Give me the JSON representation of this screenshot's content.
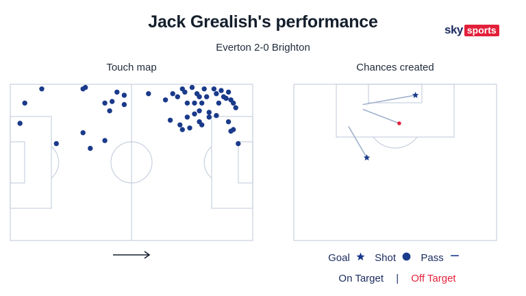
{
  "title": "Jack Grealish's performance",
  "subtitle": "Everton 2-0 Brighton",
  "logo": {
    "sky": "sky",
    "sports": "sports"
  },
  "panels": {
    "touch_map": "Touch map",
    "chances_created": "Chances created"
  },
  "legend": {
    "goal": "Goal",
    "shot": "Shot",
    "pass": "Pass",
    "on_target": "On Target",
    "separator": "|",
    "off_target": "Off Target"
  },
  "icons": {
    "goal": "star-icon",
    "shot": "circle-icon",
    "pass": "dash-icon",
    "direction": "arrow-right-icon"
  },
  "colors": {
    "marker": "#1a3a8a",
    "pitch_lines": "#c7d0de",
    "off_target": "#e3203a",
    "pass_line": "#9fb1cc"
  },
  "chart_data": [
    {
      "type": "scatter",
      "name": "Touch map",
      "note_units": "pitch coordinates, x: 0-100 along attacking direction, y: 0-100 from top touchline",
      "points": [
        {
          "x": 13,
          "y": 3
        },
        {
          "x": 6,
          "y": 12
        },
        {
          "x": 31,
          "y": 2
        },
        {
          "x": 30,
          "y": 3
        },
        {
          "x": 44,
          "y": 5
        },
        {
          "x": 47,
          "y": 7
        },
        {
          "x": 42,
          "y": 11
        },
        {
          "x": 39,
          "y": 12
        },
        {
          "x": 47,
          "y": 13
        },
        {
          "x": 41,
          "y": 17
        },
        {
          "x": 4,
          "y": 25
        },
        {
          "x": 30,
          "y": 31
        },
        {
          "x": 19,
          "y": 38
        },
        {
          "x": 39,
          "y": 36
        },
        {
          "x": 33,
          "y": 41
        },
        {
          "x": 57,
          "y": 6
        },
        {
          "x": 64,
          "y": 10
        },
        {
          "x": 67,
          "y": 6
        },
        {
          "x": 69,
          "y": 8
        },
        {
          "x": 72,
          "y": 5
        },
        {
          "x": 73,
          "y": 12
        },
        {
          "x": 71,
          "y": 3
        },
        {
          "x": 75,
          "y": 2
        },
        {
          "x": 77,
          "y": 6
        },
        {
          "x": 76,
          "y": 12
        },
        {
          "x": 78,
          "y": 8
        },
        {
          "x": 80,
          "y": 3
        },
        {
          "x": 81,
          "y": 8
        },
        {
          "x": 79,
          "y": 12
        },
        {
          "x": 84,
          "y": 3
        },
        {
          "x": 85,
          "y": 6
        },
        {
          "x": 87,
          "y": 4
        },
        {
          "x": 88,
          "y": 8
        },
        {
          "x": 89,
          "y": 9
        },
        {
          "x": 90,
          "y": 5
        },
        {
          "x": 92,
          "y": 12
        },
        {
          "x": 93,
          "y": 15
        },
        {
          "x": 91,
          "y": 10
        },
        {
          "x": 86,
          "y": 12
        },
        {
          "x": 85,
          "y": 20
        },
        {
          "x": 78,
          "y": 17
        },
        {
          "x": 76,
          "y": 19
        },
        {
          "x": 73,
          "y": 21
        },
        {
          "x": 66,
          "y": 23
        },
        {
          "x": 70,
          "y": 26
        },
        {
          "x": 71,
          "y": 29
        },
        {
          "x": 74,
          "y": 28
        },
        {
          "x": 78,
          "y": 24
        },
        {
          "x": 79,
          "y": 26
        },
        {
          "x": 82,
          "y": 18
        },
        {
          "x": 82,
          "y": 21
        },
        {
          "x": 90,
          "y": 24
        },
        {
          "x": 91,
          "y": 30
        },
        {
          "x": 94,
          "y": 38
        },
        {
          "x": 92,
          "y": 29
        }
      ]
    },
    {
      "type": "scatter",
      "name": "Chances created",
      "note_units": "half-pitch coordinates, x: 0-100 across width, y: 0-100 from goal line",
      "items": [
        {
          "kind": "pass",
          "result": "goal",
          "from": [
            34,
            13
          ],
          "to": [
            60,
            7
          ]
        },
        {
          "kind": "pass",
          "result": "off_target",
          "from": [
            34,
            16
          ],
          "to": [
            52,
            25
          ]
        },
        {
          "kind": "pass",
          "result": "goal",
          "from": [
            27,
            27
          ],
          "to": [
            36,
            47
          ]
        }
      ]
    }
  ]
}
